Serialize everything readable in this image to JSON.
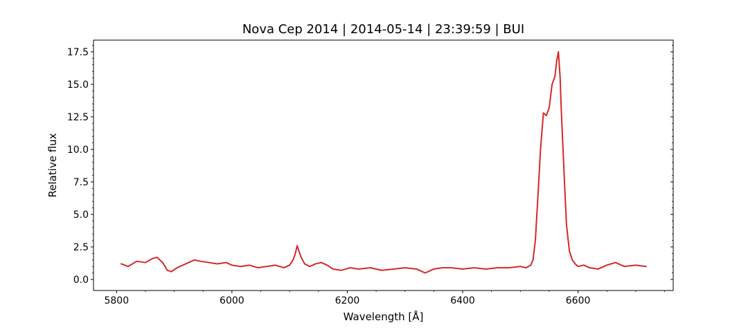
{
  "chart_data": {
    "type": "line",
    "title": "Nova Cep 2014 | 2014-05-14 | 23:39:59 | BUI",
    "xlabel": "Wavelength [Å]",
    "ylabel": "Relative flux",
    "xlim": [
      5760,
      6765
    ],
    "ylim": [
      -0.85,
      18.4
    ],
    "x_ticks": [
      5800,
      6000,
      6200,
      6400,
      6600
    ],
    "x_tick_labels": [
      "5800",
      "6000",
      "6200",
      "6400",
      "6600"
    ],
    "y_ticks": [
      0,
      2.5,
      5,
      7.5,
      10,
      12.5,
      15,
      17.5
    ],
    "y_tick_labels": [
      "0.0",
      "2.5",
      "5.0",
      "7.5",
      "10.0",
      "12.5",
      "15.0",
      "17.5"
    ],
    "grid": false,
    "series": [
      {
        "color": "#d62728",
        "x": [
          5808,
          5820,
          5835,
          5850,
          5862,
          5870,
          5880,
          5888,
          5895,
          5905,
          5915,
          5925,
          5935,
          5945,
          5960,
          5975,
          5990,
          6000,
          6015,
          6030,
          6045,
          6060,
          6075,
          6090,
          6100,
          6106,
          6110,
          6113,
          6116,
          6120,
          6126,
          6135,
          6145,
          6155,
          6165,
          6175,
          6190,
          6205,
          6220,
          6240,
          6260,
          6280,
          6300,
          6320,
          6335,
          6350,
          6365,
          6380,
          6400,
          6420,
          6440,
          6460,
          6480,
          6500,
          6510,
          6518,
          6522,
          6526,
          6530,
          6535,
          6540,
          6545,
          6550,
          6555,
          6560,
          6563,
          6566,
          6569,
          6571,
          6574,
          6577,
          6580,
          6585,
          6590,
          6595,
          6600,
          6610,
          6620,
          6635,
          6650,
          6665,
          6680,
          6700,
          6718
        ],
        "y": [
          1.2,
          1.0,
          1.4,
          1.3,
          1.6,
          1.7,
          1.3,
          0.7,
          0.6,
          0.9,
          1.1,
          1.3,
          1.5,
          1.4,
          1.3,
          1.2,
          1.3,
          1.1,
          1.0,
          1.1,
          0.9,
          1.0,
          1.1,
          0.9,
          1.1,
          1.5,
          2.0,
          2.6,
          2.2,
          1.7,
          1.2,
          1.0,
          1.2,
          1.3,
          1.1,
          0.8,
          0.7,
          0.9,
          0.8,
          0.9,
          0.7,
          0.8,
          0.9,
          0.8,
          0.5,
          0.8,
          0.9,
          0.9,
          0.8,
          0.9,
          0.8,
          0.9,
          0.9,
          1.0,
          0.9,
          1.1,
          1.5,
          3.0,
          6.0,
          10.0,
          12.8,
          12.6,
          13.2,
          15.0,
          15.6,
          16.8,
          17.5,
          15.5,
          13.0,
          10.0,
          7.0,
          4.2,
          2.2,
          1.5,
          1.2,
          1.0,
          1.1,
          0.9,
          0.8,
          1.1,
          1.3,
          1.0,
          1.1,
          1.0
        ]
      }
    ]
  }
}
